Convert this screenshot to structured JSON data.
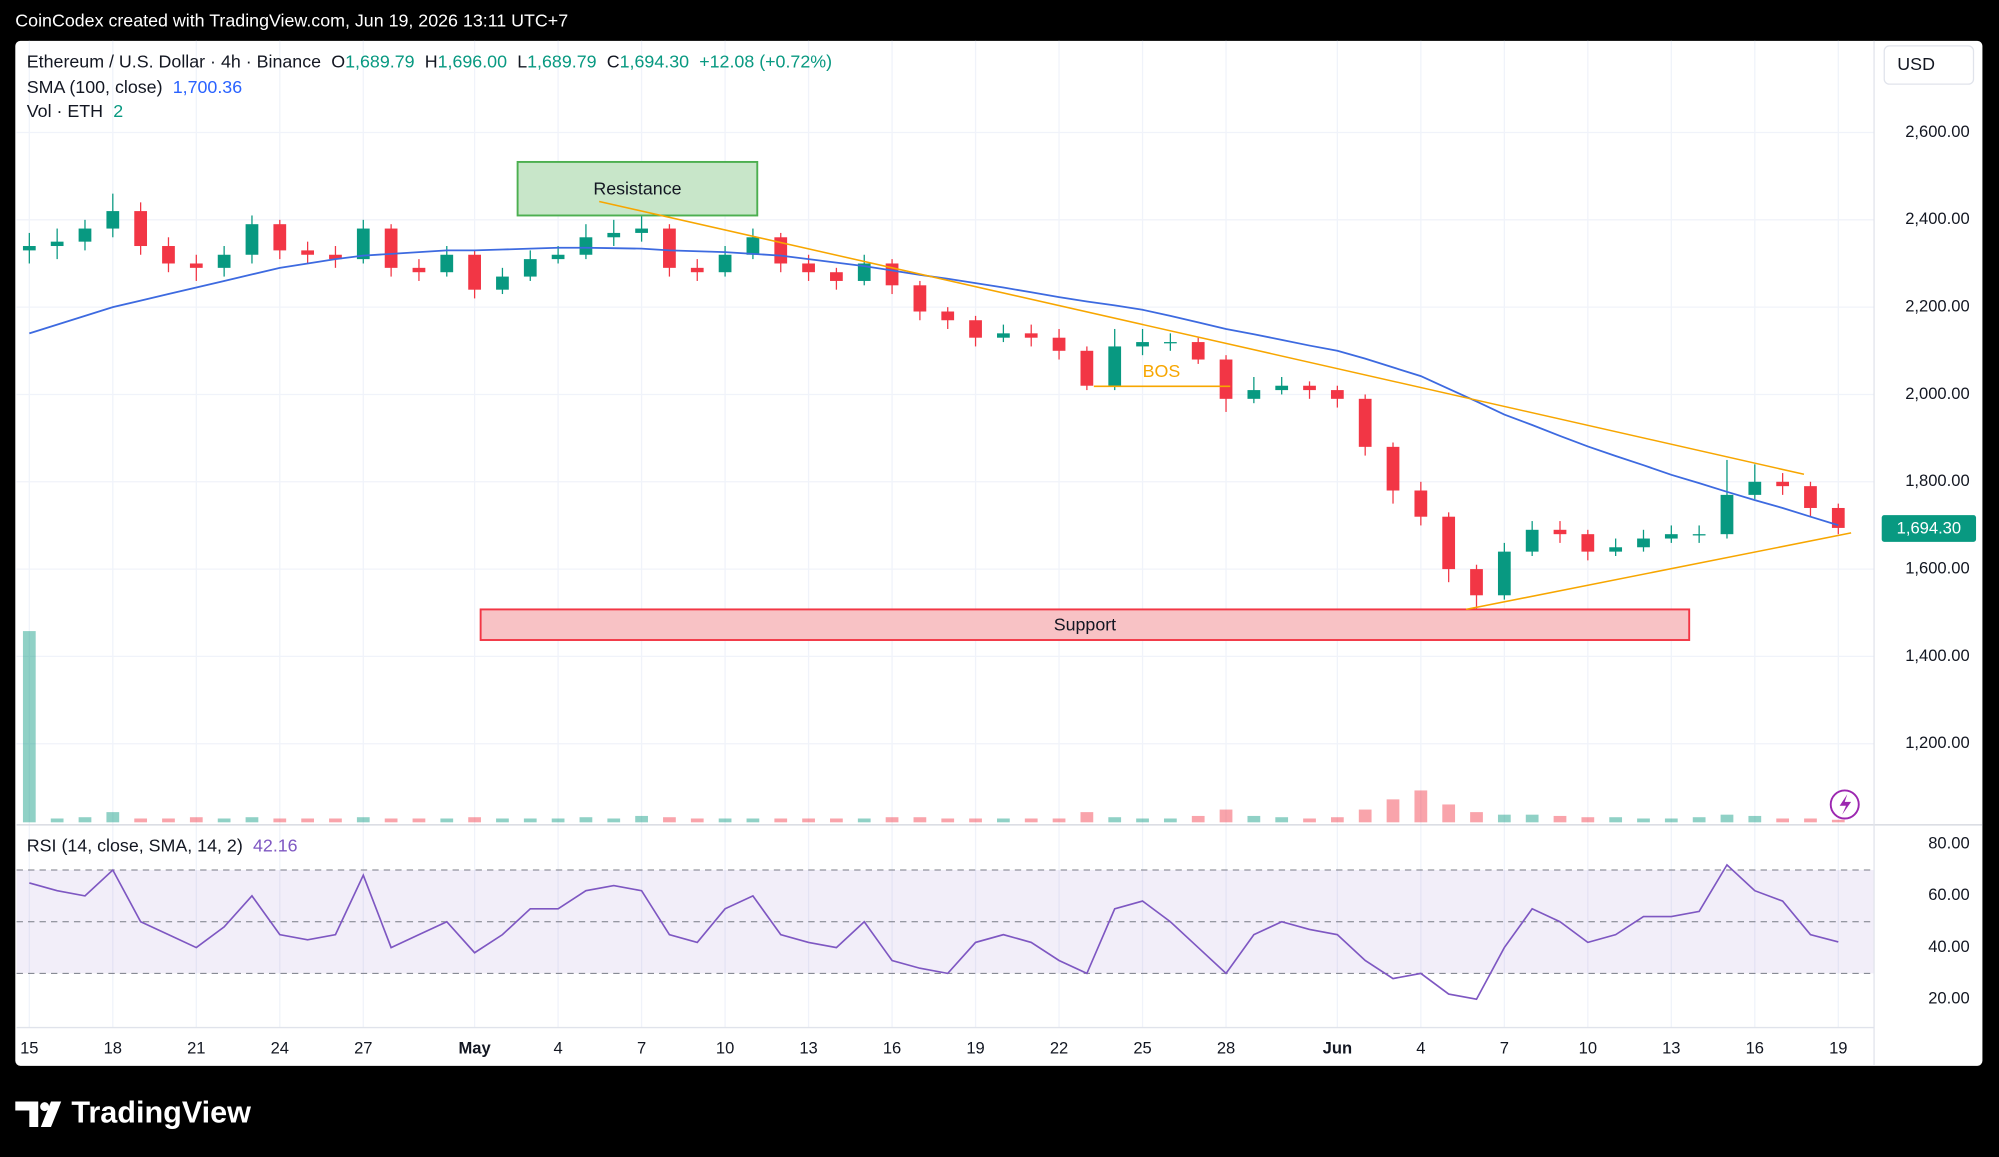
{
  "header": {
    "watermark": "CoinCodex created with TradingView.com, Jun 19, 2026 13:11 UTC+7",
    "symbol": "Ethereum / U.S. Dollar · 4h · Binance",
    "ohlc": [
      {
        "label": "O",
        "value": "1,689.79"
      },
      {
        "label": "H",
        "value": "1,696.00"
      },
      {
        "label": "L",
        "value": "1,689.79"
      },
      {
        "label": "C",
        "value": "1,694.30"
      }
    ],
    "change": "+12.08 (+0.72%)",
    "sma_label": "SMA (100, close)",
    "sma_value": "1,700.36",
    "vol_label": "Vol · ETH",
    "vol_value": "2",
    "rsi_label": "RSI (14, close, SMA, 14, 2)",
    "rsi_value": "42.16",
    "currency": "USD",
    "last_price": "1,694.30",
    "brand": "TradingView"
  },
  "chart_data": [
    {
      "type": "candlestick",
      "categories": [
        "15",
        null,
        null,
        "18",
        null,
        null,
        "21",
        null,
        null,
        "24",
        null,
        null,
        "27",
        null,
        null,
        null,
        "May",
        null,
        null,
        "4",
        null,
        null,
        "7",
        null,
        null,
        "10",
        null,
        null,
        "13",
        null,
        null,
        "16",
        null,
        null,
        "19",
        null,
        null,
        "22",
        null,
        null,
        "25",
        null,
        null,
        "28",
        null,
        null,
        null,
        "Jun",
        null,
        null,
        "4",
        null,
        null,
        "7",
        null,
        null,
        "10",
        null,
        null,
        "13",
        null,
        null,
        "16",
        null,
        null,
        "19"
      ],
      "open": [
        2330,
        2340,
        2350,
        2380,
        2420,
        2340,
        2300,
        2290,
        2320,
        2390,
        2330,
        2320,
        2310,
        2380,
        2290,
        2280,
        2320,
        2240,
        2270,
        2310,
        2320,
        2360,
        2370,
        2380,
        2290,
        2280,
        2320,
        2360,
        2300,
        2280,
        2260,
        2300,
        2250,
        2190,
        2170,
        2130,
        2140,
        2130,
        2100,
        2020,
        2110,
        2120,
        2120,
        2080,
        1990,
        2010,
        2020,
        2010,
        1990,
        1880,
        1780,
        1720,
        1600,
        1540,
        1640,
        1690,
        1680,
        1640,
        1650,
        1670,
        1680,
        1680,
        1770,
        1800,
        1790,
        1740
      ],
      "high": [
        2370,
        2380,
        2400,
        2460,
        2440,
        2360,
        2320,
        2340,
        2410,
        2400,
        2350,
        2340,
        2400,
        2390,
        2310,
        2340,
        2330,
        2290,
        2330,
        2340,
        2390,
        2400,
        2410,
        2390,
        2310,
        2340,
        2380,
        2370,
        2320,
        2290,
        2320,
        2310,
        2260,
        2200,
        2180,
        2160,
        2160,
        2150,
        2110,
        2150,
        2150,
        2140,
        2130,
        2090,
        2040,
        2040,
        2030,
        2020,
        2000,
        1890,
        1800,
        1730,
        1610,
        1660,
        1710,
        1710,
        1690,
        1670,
        1690,
        1700,
        1700,
        1850,
        1840,
        1820,
        1800,
        1750
      ],
      "low": [
        2300,
        2310,
        2330,
        2360,
        2320,
        2280,
        2260,
        2270,
        2300,
        2310,
        2300,
        2290,
        2300,
        2270,
        2260,
        2270,
        2220,
        2230,
        2260,
        2300,
        2310,
        2340,
        2350,
        2270,
        2260,
        2270,
        2310,
        2280,
        2260,
        2240,
        2250,
        2230,
        2170,
        2150,
        2110,
        2120,
        2110,
        2080,
        2010,
        2010,
        2090,
        2100,
        2070,
        1960,
        1980,
        2000,
        1990,
        1970,
        1860,
        1750,
        1700,
        1570,
        1510,
        1530,
        1630,
        1660,
        1620,
        1630,
        1640,
        1660,
        1660,
        1670,
        1760,
        1770,
        1720,
        1680
      ],
      "close": [
        2340,
        2350,
        2380,
        2420,
        2340,
        2300,
        2290,
        2320,
        2390,
        2330,
        2320,
        2310,
        2380,
        2290,
        2280,
        2320,
        2240,
        2270,
        2310,
        2320,
        2360,
        2370,
        2380,
        2290,
        2280,
        2320,
        2360,
        2300,
        2280,
        2260,
        2300,
        2250,
        2190,
        2170,
        2130,
        2140,
        2130,
        2100,
        2020,
        2110,
        2120,
        2120,
        2080,
        1990,
        2010,
        2020,
        2010,
        1990,
        1880,
        1780,
        1720,
        1600,
        1540,
        1640,
        1690,
        1680,
        1640,
        1650,
        1670,
        1680,
        1680,
        1770,
        1800,
        1790,
        1740,
        1694.3
      ],
      "volume": [
        150,
        3,
        4,
        8,
        3,
        3,
        4,
        3,
        4,
        3,
        3,
        3,
        4,
        3,
        3,
        3,
        4,
        3,
        3,
        3,
        4,
        3,
        5,
        4,
        3,
        3,
        3,
        3,
        3,
        3,
        3,
        4,
        4,
        3,
        3,
        3,
        3,
        3,
        8,
        4,
        3,
        3,
        5,
        10,
        5,
        4,
        3,
        4,
        10,
        18,
        25,
        14,
        8,
        6,
        6,
        5,
        4,
        4,
        3,
        3,
        4,
        6,
        5,
        3,
        3,
        2
      ],
      "up_color": "#089981",
      "down_color": "#f23645",
      "overlay": {
        "color": "#3d6ae0",
        "values": [
          2140,
          2160,
          2180,
          2200,
          2215,
          2230,
          2245,
          2260,
          2275,
          2290,
          2300,
          2310,
          2318,
          2322,
          2326,
          2330,
          2330,
          2332,
          2334,
          2336,
          2336,
          2335,
          2334,
          2330,
          2328,
          2326,
          2322,
          2318,
          2310,
          2302,
          2294,
          2284,
          2274,
          2265,
          2255,
          2245,
          2234,
          2223,
          2213,
          2204,
          2194,
          2180,
          2165,
          2150,
          2138,
          2125,
          2112,
          2100,
          2082,
          2062,
          2042,
          2013,
          1984,
          1954,
          1930,
          1905,
          1881,
          1859,
          1838,
          1816,
          1797,
          1777,
          1758,
          1740,
          1720,
          1700.36
        ]
      },
      "ylim": [
        1020,
        2810
      ],
      "yticks": [
        {
          "value": 1200,
          "label": "1,200.00"
        },
        {
          "value": 1400,
          "label": "1,400.00"
        },
        {
          "value": 1600,
          "label": "1,600.00"
        },
        {
          "value": 1800,
          "label": "1,800.00"
        },
        {
          "value": 2000,
          "label": "2,000.00"
        },
        {
          "value": 2200,
          "label": "2,200.00"
        },
        {
          "value": 2400,
          "label": "2,400.00"
        },
        {
          "value": 2600,
          "label": "2,600.00"
        }
      ],
      "grid": true,
      "annotations": [
        "Resistance",
        "Support",
        "BOS"
      ]
    },
    {
      "type": "line",
      "color": "#7e57c2",
      "values": [
        65,
        62,
        60,
        70,
        50,
        45,
        40,
        48,
        60,
        45,
        43,
        45,
        68,
        40,
        45,
        50,
        38,
        45,
        55,
        55,
        62,
        64,
        62,
        45,
        42,
        55,
        60,
        45,
        42,
        40,
        50,
        35,
        32,
        30,
        42,
        45,
        42,
        35,
        30,
        55,
        58,
        50,
        40,
        30,
        45,
        50,
        47,
        45,
        35,
        28,
        30,
        22,
        20,
        40,
        55,
        50,
        42,
        45,
        52,
        52,
        54,
        72,
        62,
        58,
        45,
        42.16
      ],
      "bands": [
        30,
        50,
        70
      ],
      "ylim": [
        12,
        86
      ],
      "yticks": [
        {
          "value": 20,
          "label": "20.00"
        },
        {
          "value": 40,
          "label": "40.00"
        },
        {
          "value": 60,
          "label": "60.00"
        },
        {
          "value": 80,
          "label": "80.00"
        }
      ]
    }
  ]
}
